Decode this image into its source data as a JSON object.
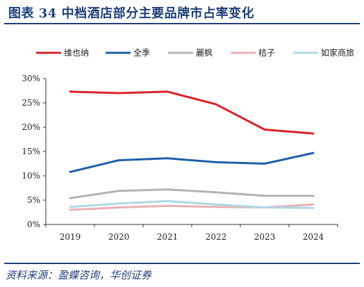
{
  "header": {
    "title": "图表 34 中档酒店部分主要品牌市占率变化"
  },
  "footer": {
    "source": "资料来源：盈蝶咨询，华创证券"
  },
  "chart_data": {
    "type": "line",
    "x": [
      "2019",
      "2020",
      "2021",
      "2022",
      "2023",
      "2024"
    ],
    "ylim": [
      0,
      30
    ],
    "yticks": [
      "0%",
      "5%",
      "10%",
      "15%",
      "20%",
      "25%",
      "30%"
    ],
    "grid": false,
    "legend_position": "top",
    "series": [
      {
        "name": "维也纳",
        "color": "#d9232a",
        "values": [
          27.3,
          27.0,
          27.3,
          24.7,
          19.5,
          18.7
        ]
      },
      {
        "name": "全季",
        "color": "#1f5fa8",
        "values": [
          10.8,
          13.2,
          13.6,
          12.8,
          12.5,
          14.7
        ]
      },
      {
        "name": "麗枫",
        "color": "#b2b2b2",
        "values": [
          5.4,
          6.9,
          7.2,
          6.6,
          5.9,
          5.9
        ]
      },
      {
        "name": "桔子",
        "color": "#eab0b5",
        "values": [
          3.0,
          3.5,
          3.8,
          3.6,
          3.5,
          4.1
        ]
      },
      {
        "name": "如家商旅",
        "color": "#add8e6",
        "values": [
          3.6,
          4.3,
          4.8,
          4.1,
          3.5,
          3.4
        ]
      }
    ]
  }
}
